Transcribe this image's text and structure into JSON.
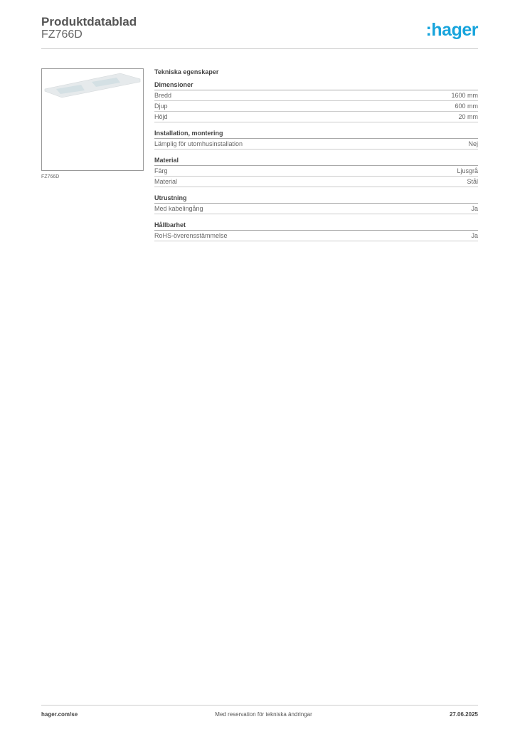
{
  "header": {
    "title": "Produktdatablad",
    "product_code": "FZ766D",
    "logo": "hager",
    "logo_color": "#17a4dc"
  },
  "image": {
    "caption": "FZ766D"
  },
  "specs": {
    "heading": "Tekniska egenskaper",
    "groups": [
      {
        "title": "Dimensioner",
        "rows": [
          {
            "label": "Bredd",
            "value": "1600 mm"
          },
          {
            "label": "Djup",
            "value": "600 mm"
          },
          {
            "label": "Höjd",
            "value": "20 mm"
          }
        ]
      },
      {
        "title": "Installation, montering",
        "rows": [
          {
            "label": "Lämplig för utomhusinstallation",
            "value": "Nej"
          }
        ]
      },
      {
        "title": "Material",
        "rows": [
          {
            "label": "Färg",
            "value": "Ljusgrå"
          },
          {
            "label": "Material",
            "value": "Stål"
          }
        ]
      },
      {
        "title": "Utrustning",
        "rows": [
          {
            "label": "Med kabelingång",
            "value": "Ja"
          }
        ]
      },
      {
        "title": "Hållbarhet",
        "rows": [
          {
            "label": "RoHS-överensstämmelse",
            "value": "Ja"
          }
        ]
      }
    ]
  },
  "footer": {
    "website": "hager.com/se",
    "disclaimer": "Med reservation för tekniska ändringar",
    "date": "27.06.2025"
  }
}
